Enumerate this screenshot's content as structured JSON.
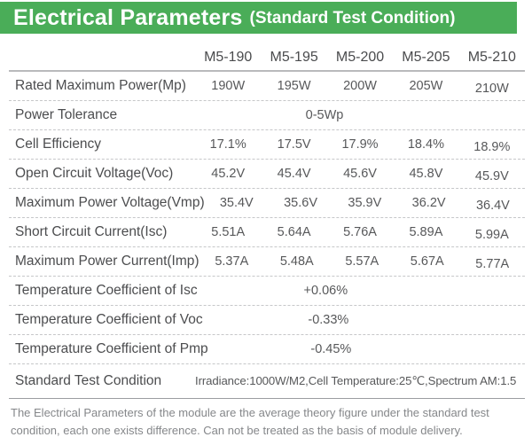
{
  "banner": {
    "title": "Electrical Parameters",
    "subtitle": "(Standard Test Condition)"
  },
  "table": {
    "columns": [
      "M5-190",
      "M5-195",
      "M5-200",
      "M5-205",
      "M5-210"
    ],
    "rows": [
      {
        "label": "Rated Maximum Power(Mp)",
        "values": [
          "190W",
          "195W",
          "200W",
          "205W",
          "210W"
        ]
      },
      {
        "label": "Power Tolerance",
        "span_value": "0-5Wp"
      },
      {
        "label": "Cell Efficiency",
        "values": [
          "17.1%",
          "17.5V",
          "17.9%",
          "18.4%",
          "18.9%"
        ]
      },
      {
        "label": "Open Circuit Voltage(Voc)",
        "values": [
          "45.2V",
          "45.4V",
          "45.6V",
          "45.8V",
          "45.9V"
        ]
      },
      {
        "label": "Maximum Power Voltage(Vmp)",
        "values": [
          "35.4V",
          "35.6V",
          "35.9V",
          "36.2V",
          "36.4V"
        ]
      },
      {
        "label": "Short Circuit Current(Isc)",
        "values": [
          "5.51A",
          "5.64A",
          "5.76A",
          "5.89A",
          "5.99A"
        ]
      },
      {
        "label": "Maximum Power Current(Imp)",
        "values": [
          "5.37A",
          "5.48A",
          "5.57A",
          "5.67A",
          "5.77A"
        ]
      },
      {
        "label": "Temperature Coefficient of Isc",
        "span_value": "+0.06%"
      },
      {
        "label": "Temperature Coefficient of Voc",
        "span_value": "-0.33%"
      },
      {
        "label": "Temperature Coefficient of Pmp",
        "span_value": "-0.45%"
      },
      {
        "label": "Standard Test Condition",
        "span_value": "Irradiance:1000W/M2,Cell Temperature:25℃,Spectrum AM:1.5"
      }
    ]
  },
  "footnote": "The Electrical Parameters of the module are the average theory figure under the standard test condition, each one exists difference. Can not be treated as the basis of module delivery.",
  "colors": {
    "banner_green": "#4aad58",
    "banner_text": "#ffffff",
    "header_text": "#4a4b4d",
    "label_text": "#4c4d4f",
    "value_text": "#57585a",
    "note_text": "#85878a",
    "dashed_line": "#c6c7c9",
    "header_line": "#b9babc",
    "footer_line": "#9b9da0"
  }
}
